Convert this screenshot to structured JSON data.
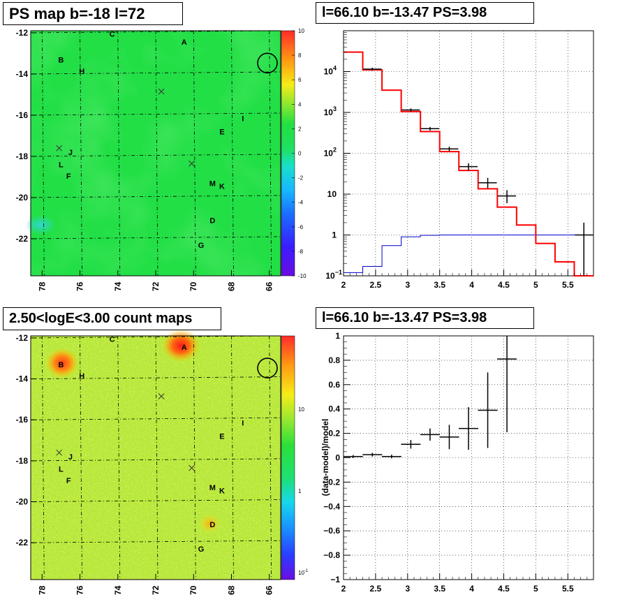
{
  "panels": {
    "ps_map": {
      "title": "PS map b=-18 l=72"
    },
    "count_map": {
      "title": "2.50<logE<3.00 count maps"
    },
    "spectrum": {
      "title": "l=66.10 b=-13.47 PS=3.98"
    },
    "residual": {
      "title": "l=66.10 b=-13.47 PS=3.98"
    }
  },
  "maps": {
    "x_ticks": [
      "78",
      "76",
      "74",
      "72",
      "70",
      "68",
      "66"
    ],
    "y_ticks": [
      "-12",
      "-14",
      "-16",
      "-18",
      "-20",
      "-22"
    ],
    "x_range": [
      78.6,
      65.4
    ],
    "y_range": [
      -23.8,
      -11.9
    ],
    "sources": [
      {
        "label": "A",
        "l": 70.5,
        "b": -12.45
      },
      {
        "label": "B",
        "l": 77.0,
        "b": -13.3
      },
      {
        "label": "C",
        "l": 74.3,
        "b": -12.05
      },
      {
        "label": "H",
        "l": 75.9,
        "b": -13.85
      },
      {
        "label": "I",
        "l": 67.4,
        "b": -16.15
      },
      {
        "label": "E",
        "l": 68.5,
        "b": -16.8
      },
      {
        "label": "J",
        "l": 76.5,
        "b": -17.8
      },
      {
        "label": "L",
        "l": 77.0,
        "b": -18.4
      },
      {
        "label": "F",
        "l": 76.6,
        "b": -18.95
      },
      {
        "label": "M",
        "l": 69.0,
        "b": -19.3
      },
      {
        "label": "K",
        "l": 68.5,
        "b": -19.45
      },
      {
        "label": "D",
        "l": 69.0,
        "b": -21.1
      },
      {
        "label": "G",
        "l": 69.6,
        "b": -22.3
      }
    ],
    "crosses": [
      {
        "l": 71.7,
        "b": -14.85
      },
      {
        "l": 77.1,
        "b": -17.6
      },
      {
        "l": 70.1,
        "b": -18.35
      }
    ],
    "circle": {
      "l": 66.1,
      "b": -13.47
    }
  },
  "ps_colorbar": {
    "labels": [
      "10",
      "8",
      "6",
      "4",
      "2",
      "0",
      "-2",
      "-4",
      "-6",
      "-8",
      "-10"
    ]
  },
  "count_colorbar": {
    "labels": [
      "10",
      "1",
      "10"
    ],
    "minor_label": "10",
    "minor_exp": "-1"
  },
  "chart_data": [
    {
      "type": "heatmap",
      "title": "PS map b=-18 l=72",
      "xlim": [
        78.6,
        65.4
      ],
      "ylim": [
        -23.8,
        -11.9
      ],
      "zlim": [
        -10,
        10
      ],
      "colors": [
        "#6a0de0",
        "#1f4bff",
        "#15c3ff",
        "#30e87a",
        "#22e04a",
        "#8ce830",
        "#f5ec18",
        "#ff9a12",
        "#ff2b2b"
      ]
    },
    {
      "type": "heatmap",
      "title": "2.50<logE<3.00 count maps",
      "xlim": [
        78.6,
        65.4
      ],
      "ylim": [
        -23.8,
        -11.9
      ],
      "zscale": "log"
    },
    {
      "type": "line",
      "title": "l=66.10 b=-13.47 PS=3.98",
      "xlim": [
        2.0,
        5.9
      ],
      "ylim": [
        0.1,
        100000
      ],
      "yscale": "log",
      "grid": true,
      "model_red": {
        "edges": [
          2.0,
          2.3,
          2.6,
          2.9,
          3.2,
          3.5,
          3.8,
          4.1,
          4.4,
          4.7,
          5.0,
          5.3,
          5.6,
          5.9
        ],
        "values": [
          30000,
          11000,
          3500,
          1050,
          340,
          110,
          38,
          13.5,
          4.8,
          1.75,
          0.62,
          0.22,
          0.08
        ]
      },
      "model_blue": {
        "edges": [
          2.0,
          2.3,
          2.6,
          2.9,
          3.2,
          3.5,
          3.8,
          4.1,
          4.4,
          4.7,
          5.0,
          5.3,
          5.6,
          5.9
        ],
        "values": [
          0.12,
          0.17,
          0.55,
          0.9,
          0.98,
          1.0,
          1.0,
          1.0,
          1.0,
          1.0,
          1.0,
          1.0,
          1.0
        ]
      },
      "data": [
        {
          "x": 2.45,
          "y": 11500,
          "lo": 10500,
          "hi": 12500
        },
        {
          "x": 3.05,
          "y": 1150,
          "lo": 1050,
          "hi": 1250
        },
        {
          "x": 3.35,
          "y": 400,
          "lo": 360,
          "hi": 440
        },
        {
          "x": 3.65,
          "y": 128,
          "lo": 112,
          "hi": 145
        },
        {
          "x": 3.95,
          "y": 47,
          "lo": 38,
          "hi": 57
        },
        {
          "x": 4.25,
          "y": 19,
          "lo": 14,
          "hi": 25
        },
        {
          "x": 4.55,
          "y": 9,
          "lo": 6,
          "hi": 12.5
        },
        {
          "x": 5.75,
          "y": 1.0,
          "lo": 0.1,
          "hi": 2.0
        }
      ]
    },
    {
      "type": "scatter",
      "title": "l=66.10 b=-13.47 PS=3.98",
      "ylabel": "(data-model)/model",
      "xlim": [
        2.0,
        5.9
      ],
      "ylim": [
        -1.0,
        1.0
      ],
      "grid": true,
      "points": [
        {
          "x": 2.15,
          "y": 0.01,
          "err": 0.012
        },
        {
          "x": 2.45,
          "y": 0.025,
          "err": 0.015
        },
        {
          "x": 2.75,
          "y": 0.01,
          "err": 0.015
        },
        {
          "x": 3.05,
          "y": 0.11,
          "err": 0.035
        },
        {
          "x": 3.35,
          "y": 0.19,
          "err": 0.05
        },
        {
          "x": 3.65,
          "y": 0.17,
          "err": 0.1
        },
        {
          "x": 3.95,
          "y": 0.24,
          "err": 0.175
        },
        {
          "x": 4.25,
          "y": 0.39,
          "err": 0.31
        },
        {
          "x": 4.55,
          "y": 0.81,
          "err": 0.6
        }
      ]
    }
  ]
}
